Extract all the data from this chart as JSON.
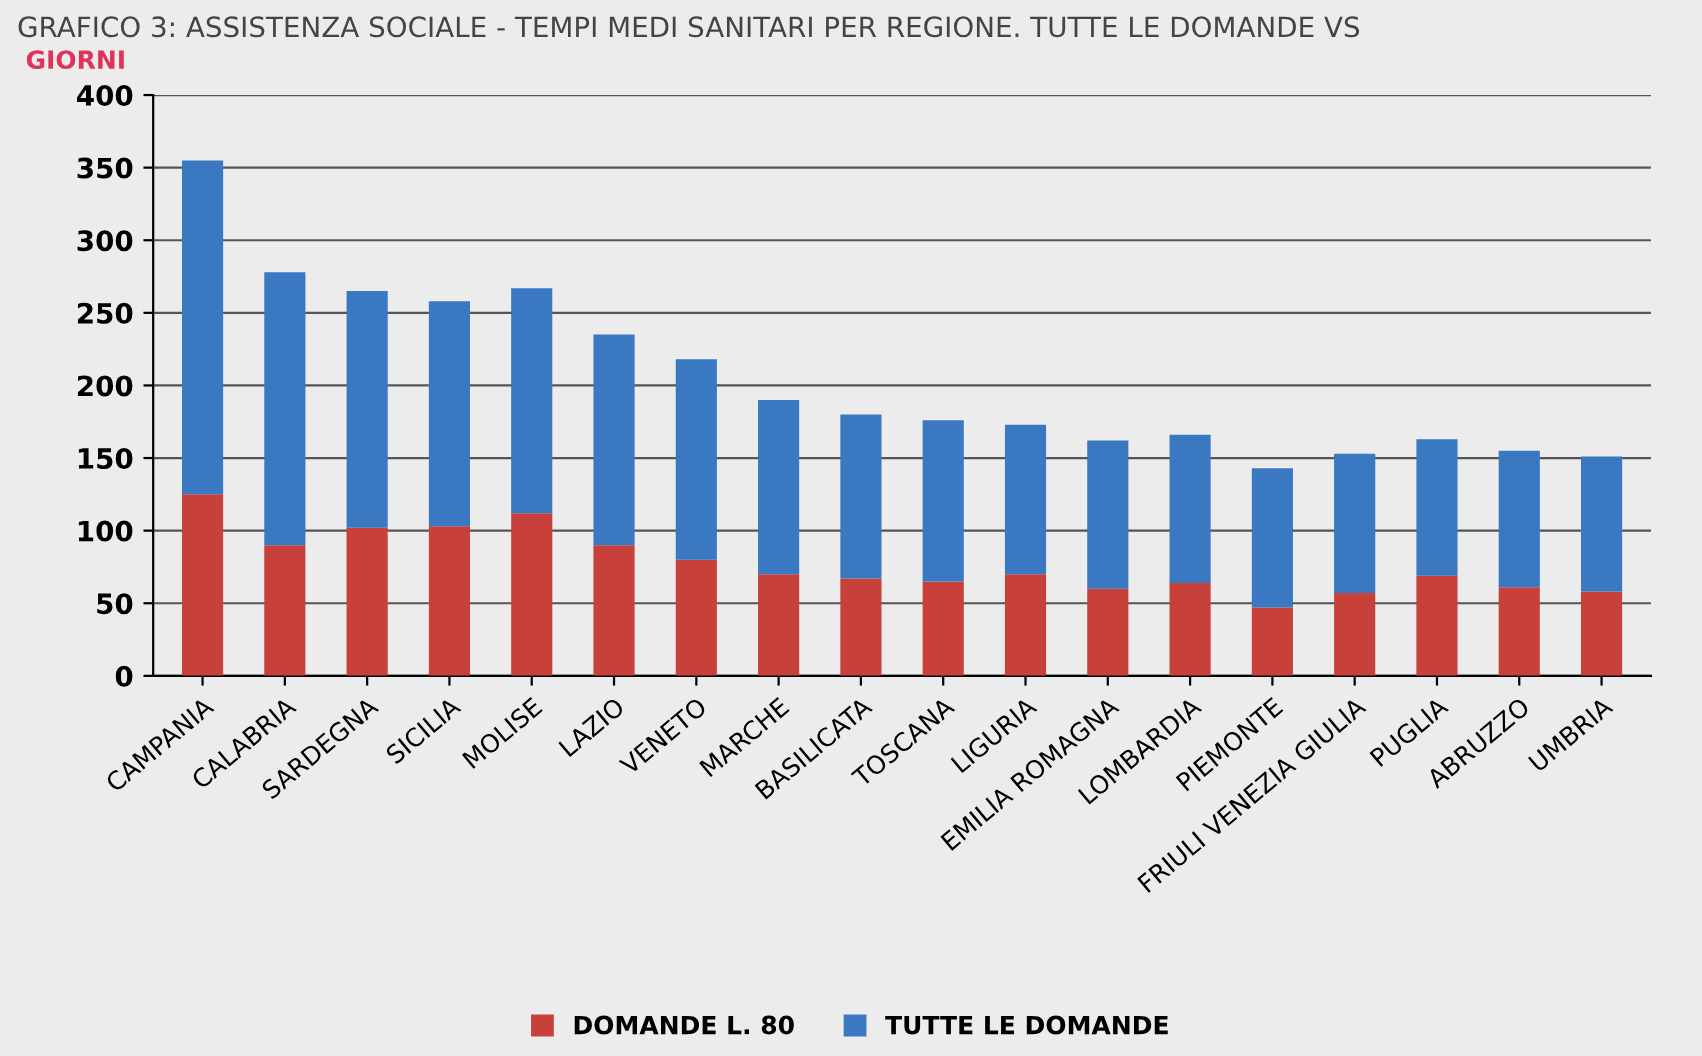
{
  "chart_data": {
    "type": "bar",
    "stacked": true,
    "title": "GRAFICO 3: ASSISTENZA SOCIALE - TEMPI MEDI SANITARI PER REGIONE. TUTTE LE DOMANDE VS",
    "ylabel": "GIORNI",
    "categories": [
      "CAMPANIA",
      "CALABRIA",
      "SARDEGNA",
      "SICILIA",
      "MOLISE",
      "LAZIO",
      "VENETO",
      "MARCHE",
      "BASILICATA",
      "TOSCANA",
      "LIGURIA",
      "EMILIA ROMAGNA",
      "LOMBARDIA",
      "PIEMONTE",
      "FRIULI VENEZIA GIULIA",
      "PUGLIA",
      "ABRUZZO",
      "UMBRIA"
    ],
    "series": [
      {
        "name": "DOMANDE L. 80",
        "color": "#c8403a",
        "values": [
          125,
          90,
          102,
          103,
          112,
          90,
          80,
          70,
          67,
          65,
          70,
          60,
          64,
          47,
          57,
          69,
          61,
          58
        ]
      },
      {
        "name": "TUTTE LE DOMANDE",
        "color": "#3a78c2",
        "values": [
          230,
          188,
          163,
          155,
          155,
          145,
          138,
          120,
          113,
          111,
          103,
          102,
          102,
          96,
          96,
          94,
          94,
          93
        ]
      }
    ],
    "ylim": [
      0,
      400
    ],
    "yticks": [
      0,
      50,
      100,
      150,
      200,
      250,
      300,
      350,
      400
    ],
    "grid": "y",
    "legend": "bottom"
  }
}
